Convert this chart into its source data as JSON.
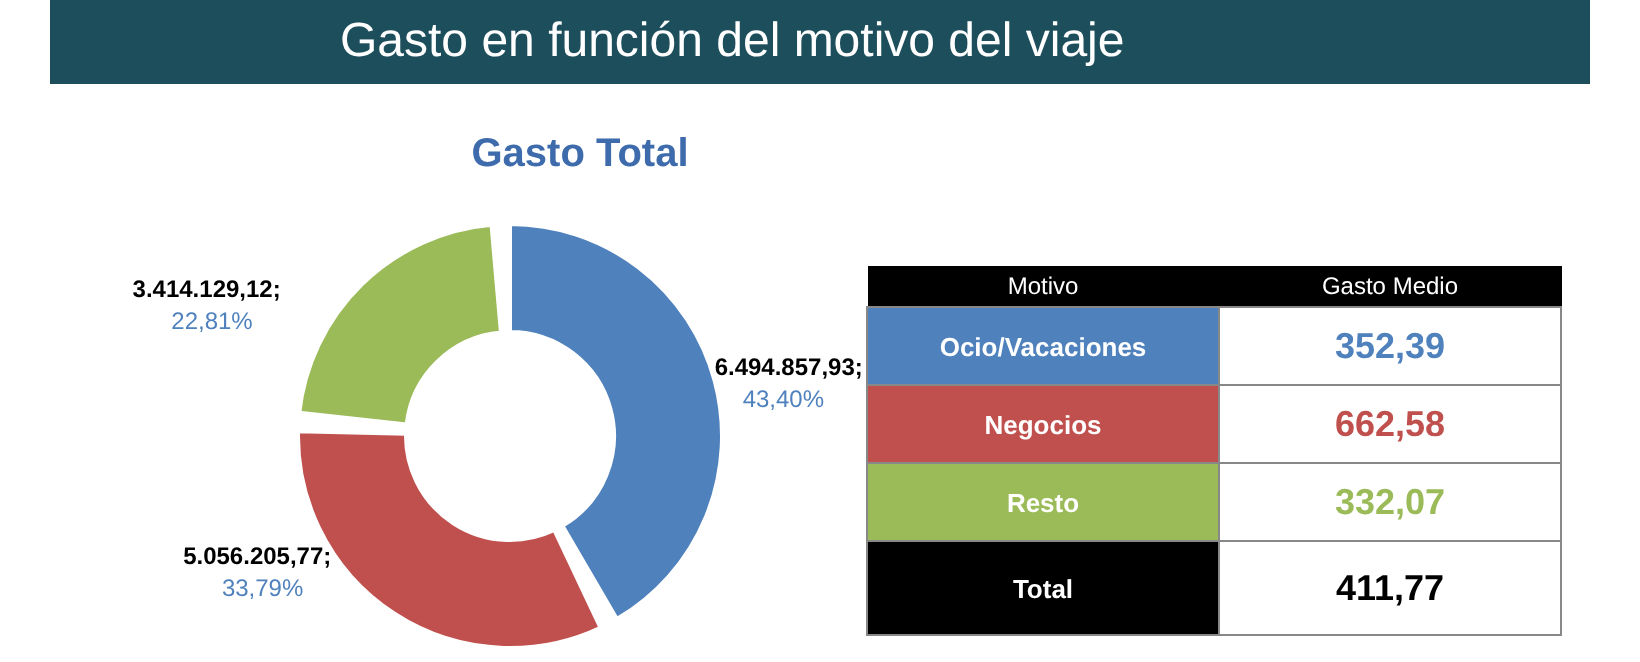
{
  "chart_data": [
    {
      "type": "donut",
      "title": "Gasto en función del motivo del viaje",
      "subtitle": "Gasto Total",
      "categories": [
        null,
        null,
        null
      ],
      "values": [
        6494857.93,
        5056205.77,
        3414129.12
      ],
      "colors": [
        "#4f81bd",
        "#c0504d",
        "#9bbb59"
      ],
      "value_labels": [
        "6.494.857,93;",
        "5.056.205,77;",
        "3.414.129,12;"
      ],
      "annotations": [
        "43,40%",
        "33,79%",
        "22,81%"
      ]
    },
    {
      "type": "other",
      "xlabel": "Motivo",
      "ylabel": "Gasto Medio",
      "categories": [
        "Ocio/Vacaciones",
        "Negocios",
        "Resto",
        "Total"
      ],
      "value_labels": [
        "352,39",
        "662,58",
        "332,07",
        "411,77"
      ],
      "colors": [
        "#4f81bd",
        "#c0504d",
        "#9bbb59",
        "#000000"
      ]
    }
  ]
}
